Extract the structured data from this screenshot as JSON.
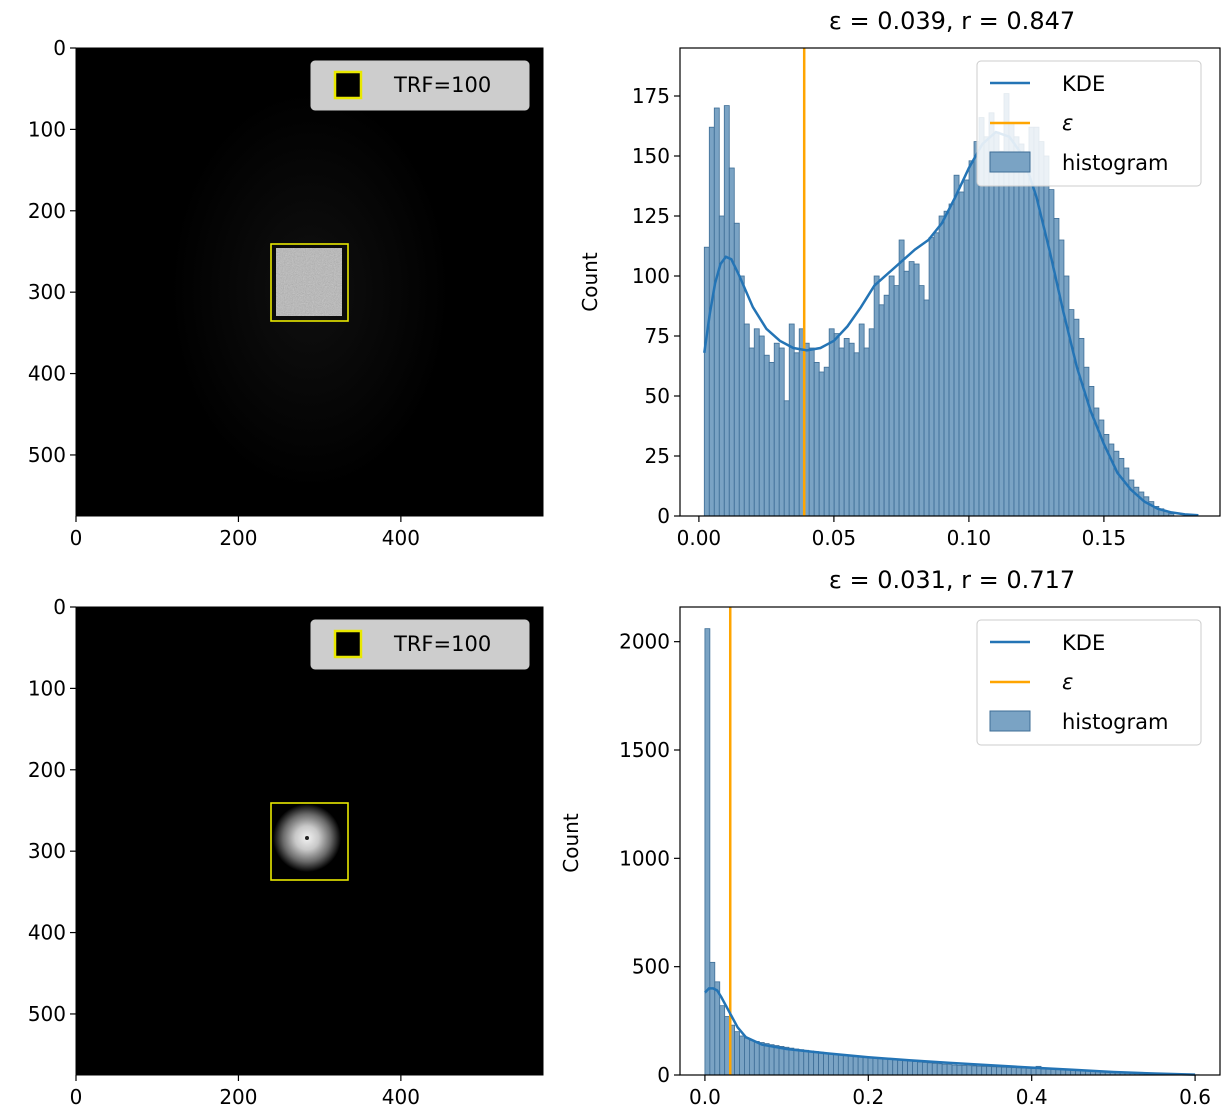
{
  "chart_data": [
    {
      "type": "image",
      "panel": "top-left",
      "image": "bright-square",
      "extent": [
        0,
        575
      ],
      "xticks": [
        0,
        200,
        400
      ],
      "yticks": [
        0,
        100,
        200,
        300,
        400,
        500
      ],
      "roi": {
        "x0": 240,
        "y0": 240,
        "x1": 335,
        "y1": 335
      },
      "legend": {
        "label": "TRF=100",
        "position": "upper right"
      },
      "colors": {
        "roi": "#e8e800",
        "background": "#000000"
      }
    },
    {
      "type": "bar",
      "panel": "top-right",
      "title": "ε = 0.039, r = 0.847",
      "ylabel": "Count",
      "xlabel": "",
      "xlim": [
        -0.007,
        0.193
      ],
      "ylim": [
        0,
        195
      ],
      "xticks": [
        0.0,
        0.05,
        0.1,
        0.15
      ],
      "xtick_labels": [
        "0.00",
        "0.05",
        "0.10",
        "0.15"
      ],
      "yticks": [
        0,
        25,
        50,
        75,
        100,
        125,
        150,
        175
      ],
      "epsilon": 0.039,
      "bin_start": 0.002,
      "bin_width": 0.00185,
      "values": [
        112,
        162,
        170,
        125,
        171,
        145,
        122,
        100,
        80,
        70,
        78,
        75,
        67,
        64,
        72,
        70,
        48,
        80,
        68,
        78,
        72,
        70,
        64,
        60,
        62,
        78,
        76,
        70,
        74,
        72,
        68,
        80,
        70,
        78,
        100,
        88,
        92,
        100,
        96,
        115,
        102,
        106,
        105,
        96,
        90,
        116,
        118,
        125,
        127,
        130,
        142,
        135,
        140,
        148,
        156,
        166,
        158,
        168,
        160,
        152,
        176,
        164,
        158,
        155,
        150,
        162,
        162,
        156,
        150,
        136,
        124,
        115,
        100,
        86,
        82,
        74,
        62,
        54,
        45,
        40,
        34,
        30,
        27,
        24,
        20,
        15,
        12,
        10,
        8,
        6,
        4,
        3,
        2,
        1
      ],
      "kde": {
        "x": [
          0.002,
          0.004,
          0.006,
          0.008,
          0.01,
          0.012,
          0.015,
          0.02,
          0.025,
          0.03,
          0.035,
          0.04,
          0.045,
          0.05,
          0.055,
          0.06,
          0.065,
          0.07,
          0.075,
          0.08,
          0.085,
          0.09,
          0.095,
          0.1,
          0.105,
          0.11,
          0.115,
          0.12,
          0.125,
          0.13,
          0.135,
          0.14,
          0.145,
          0.15,
          0.155,
          0.16,
          0.165,
          0.17,
          0.175,
          0.18,
          0.185
        ],
        "y": [
          68,
          84,
          97,
          105,
          108,
          107,
          100,
          87,
          78,
          73,
          70,
          69,
          70,
          73,
          79,
          87,
          96,
          101,
          106,
          111,
          115,
          122,
          133,
          145,
          155,
          160,
          158,
          150,
          133,
          110,
          85,
          62,
          44,
          30,
          18,
          11,
          6,
          3,
          1.5,
          0.7,
          0.3
        ]
      },
      "legend": {
        "position": "upper right",
        "items": [
          {
            "label": "KDE"
          },
          {
            "label": "ε"
          },
          {
            "label": "histogram"
          }
        ]
      },
      "colors": {
        "kde": "#2474b5",
        "epsilon": "#ffa500",
        "bars": "#7aa3c4",
        "bar_edge": "#3d6d96"
      }
    },
    {
      "type": "image",
      "panel": "bottom-left",
      "image": "bright-disc",
      "extent": [
        0,
        575
      ],
      "xticks": [
        0,
        200,
        400
      ],
      "yticks": [
        0,
        100,
        200,
        300,
        400,
        500
      ],
      "roi": {
        "x0": 240,
        "y0": 240,
        "x1": 335,
        "y1": 335
      },
      "legend": {
        "label": "TRF=100",
        "position": "upper right"
      },
      "colors": {
        "roi": "#e8e800",
        "background": "#000000"
      }
    },
    {
      "type": "bar",
      "panel": "bottom-right",
      "title": "ε = 0.031, r = 0.717",
      "ylabel": "Count",
      "xlabel": "",
      "xlim": [
        -0.0305,
        0.6305
      ],
      "ylim": [
        0,
        2160
      ],
      "xticks": [
        0.0,
        0.2,
        0.4,
        0.6
      ],
      "xtick_labels": [
        "0.0",
        "0.2",
        "0.4",
        "0.6"
      ],
      "yticks": [
        0,
        500,
        1000,
        1500,
        2000
      ],
      "epsilon": 0.031,
      "bin_start": 0.0,
      "bin_width": 0.00605,
      "values": [
        2060,
        520,
        430,
        320,
        270,
        230,
        200,
        180,
        170,
        160,
        155,
        150,
        145,
        140,
        136,
        132,
        128,
        124,
        120,
        117,
        114,
        111,
        108,
        105,
        102,
        99,
        96,
        93,
        90,
        88,
        86,
        84,
        82,
        80,
        78,
        76,
        74,
        72,
        70,
        68,
        66,
        64,
        62,
        60,
        58,
        56,
        54,
        52,
        50,
        48,
        46,
        45,
        44,
        43,
        42,
        41,
        40,
        39,
        38,
        37,
        36,
        35,
        34,
        33,
        32,
        31,
        30,
        40,
        28,
        27,
        26,
        25,
        24,
        23,
        22,
        21,
        20,
        19,
        18,
        17,
        16,
        15,
        14,
        13,
        12,
        11,
        10,
        9,
        8,
        7,
        6,
        5,
        4,
        3,
        2,
        2,
        1,
        1,
        1,
        1
      ],
      "kde": {
        "x": [
          0.0,
          0.005,
          0.01,
          0.015,
          0.02,
          0.03,
          0.04,
          0.05,
          0.07,
          0.1,
          0.15,
          0.2,
          0.25,
          0.3,
          0.35,
          0.4,
          0.45,
          0.5,
          0.55,
          0.6
        ],
        "y": [
          380,
          400,
          400,
          390,
          360,
          290,
          220,
          175,
          140,
          120,
          100,
          82,
          68,
          56,
          45,
          34,
          24,
          14,
          7,
          2
        ]
      },
      "legend": {
        "position": "upper right",
        "items": [
          {
            "label": "KDE"
          },
          {
            "label": "ε"
          },
          {
            "label": "histogram"
          }
        ]
      },
      "colors": {
        "kde": "#2474b5",
        "epsilon": "#ffa500",
        "bars": "#7aa3c4",
        "bar_edge": "#3d6d96"
      }
    }
  ]
}
